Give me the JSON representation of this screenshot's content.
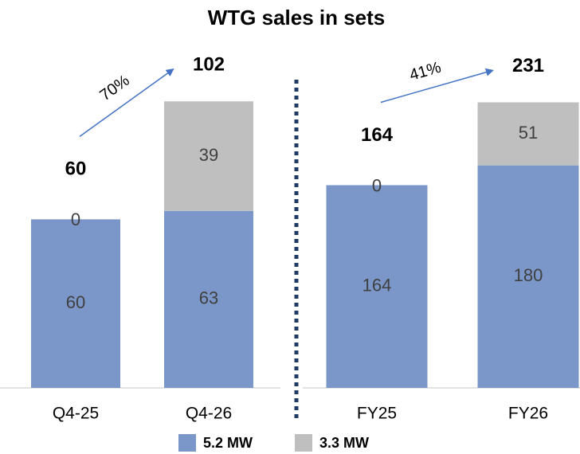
{
  "chart_data": [
    {
      "type": "stacked_bar",
      "title": "WTG sales in sets",
      "categories": [
        "Q4-25",
        "Q4-26"
      ],
      "series": [
        {
          "name": "5.2 MW",
          "color": "#7b97c9",
          "values": [
            60,
            63
          ]
        },
        {
          "name": "3.3 MW",
          "color": "#bfbfbf",
          "values": [
            0,
            39
          ]
        }
      ],
      "totals": [
        60,
        102
      ],
      "growth": "70%",
      "ylim": [
        0,
        110
      ]
    },
    {
      "type": "stacked_bar",
      "categories": [
        "FY25",
        "FY26"
      ],
      "series": [
        {
          "color": "#7b97c9",
          "values": [
            164,
            180
          ]
        },
        {
          "color": "#bfbfbf",
          "values": [
            0,
            51
          ]
        }
      ],
      "totals": [
        164,
        231
      ],
      "growth": "41%",
      "ylim": [
        0,
        250
      ]
    }
  ]
}
